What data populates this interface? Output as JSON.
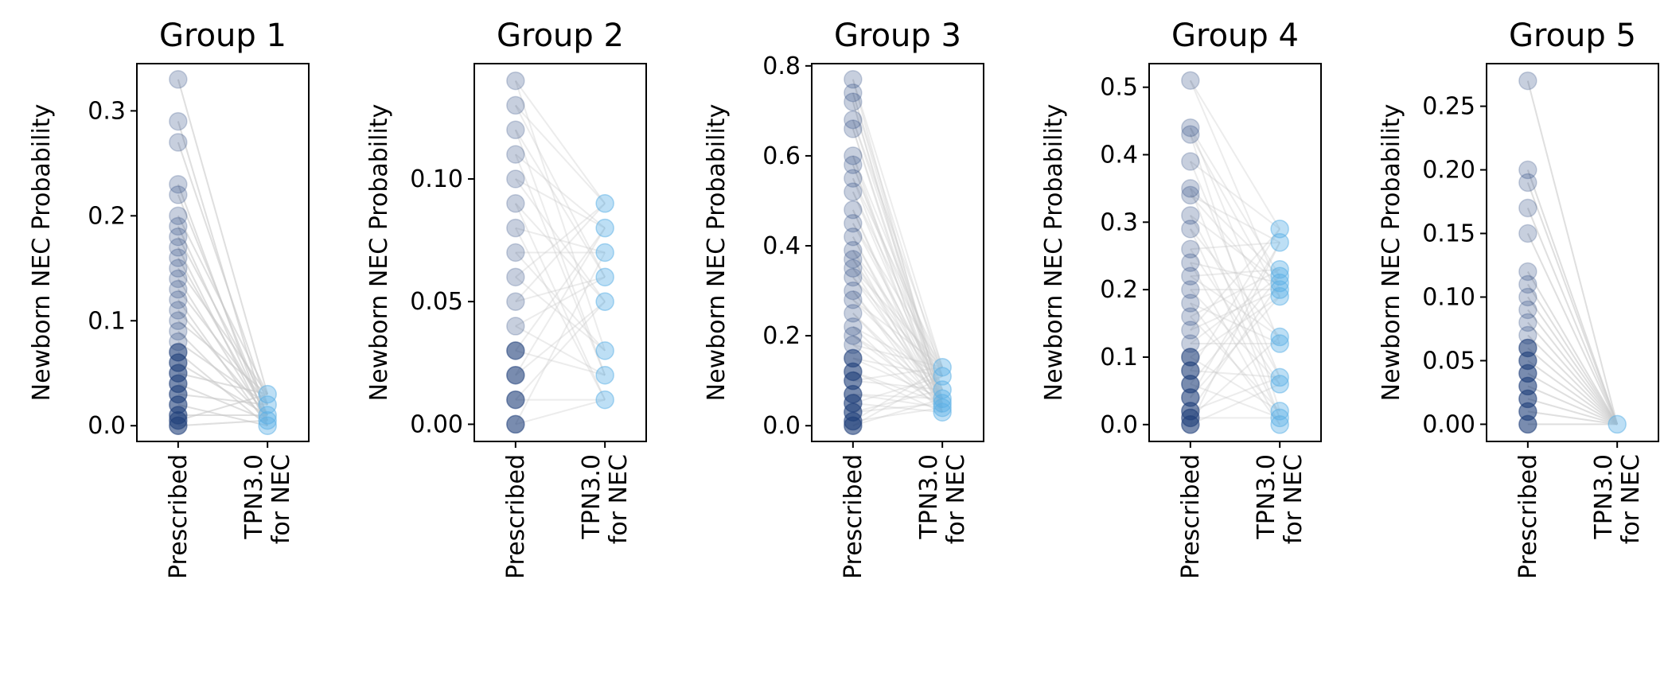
{
  "chart_data": [
    {
      "type": "scatter",
      "title": "Group 1",
      "ylabel": "Newborn NEC Probability",
      "categories": [
        "Prescribed",
        "TPN3.0\nfor NEC"
      ],
      "ylim": [
        -0.015,
        0.345
      ],
      "yticks": [
        0.0,
        0.1,
        0.2,
        0.3
      ],
      "ytick_labels": [
        "0.0",
        "0.1",
        "0.2",
        "0.3"
      ],
      "series": [
        {
          "values": [
            0.33,
            0.29,
            0.27,
            0.23,
            0.22,
            0.2,
            0.19,
            0.18,
            0.17,
            0.16,
            0.15,
            0.14,
            0.13,
            0.12,
            0.11,
            0.1,
            0.09,
            0.08,
            0.07,
            0.06,
            0.05,
            0.04,
            0.03,
            0.02,
            0.01,
            0.005,
            0.0
          ]
        },
        {
          "values": [
            0.03,
            0.02,
            0.01,
            0.005,
            0.0
          ]
        }
      ]
    },
    {
      "type": "scatter",
      "title": "Group 2",
      "ylabel": "Newborn NEC Probability",
      "categories": [
        "Prescribed",
        "TPN3.0\nfor NEC"
      ],
      "ylim": [
        -0.007,
        0.147
      ],
      "yticks": [
        0.0,
        0.05,
        0.1
      ],
      "ytick_labels": [
        "0.00",
        "0.05",
        "0.10"
      ],
      "series": [
        {
          "values": [
            0.14,
            0.13,
            0.12,
            0.11,
            0.1,
            0.09,
            0.08,
            0.07,
            0.06,
            0.05,
            0.04,
            0.03,
            0.02,
            0.01,
            0.0
          ]
        },
        {
          "values": [
            0.09,
            0.08,
            0.07,
            0.06,
            0.05,
            0.03,
            0.02,
            0.01
          ]
        }
      ]
    },
    {
      "type": "scatter",
      "title": "Group 3",
      "ylabel": "Newborn NEC Probability",
      "categories": [
        "Prescribed",
        "TPN3.0\nfor NEC"
      ],
      "ylim": [
        -0.035,
        0.805
      ],
      "yticks": [
        0.0,
        0.2,
        0.4,
        0.6,
        0.8
      ],
      "ytick_labels": [
        "0.0",
        "0.2",
        "0.4",
        "0.6",
        "0.8"
      ],
      "series": [
        {
          "values": [
            0.77,
            0.74,
            0.72,
            0.68,
            0.66,
            0.6,
            0.58,
            0.55,
            0.52,
            0.48,
            0.45,
            0.42,
            0.39,
            0.37,
            0.35,
            0.33,
            0.3,
            0.28,
            0.25,
            0.22,
            0.2,
            0.18,
            0.15,
            0.12,
            0.1,
            0.07,
            0.05,
            0.03,
            0.01,
            0.0
          ]
        },
        {
          "values": [
            0.13,
            0.11,
            0.08,
            0.06,
            0.05,
            0.04,
            0.03
          ]
        }
      ]
    },
    {
      "type": "scatter",
      "title": "Group 4",
      "ylabel": "Newborn NEC Probability",
      "categories": [
        "Prescribed",
        "TPN3.0\nfor NEC"
      ],
      "ylim": [
        -0.025,
        0.535
      ],
      "yticks": [
        0.0,
        0.1,
        0.2,
        0.3,
        0.4,
        0.5
      ],
      "ytick_labels": [
        "0.0",
        "0.1",
        "0.2",
        "0.3",
        "0.4",
        "0.5"
      ],
      "series": [
        {
          "values": [
            0.51,
            0.44,
            0.43,
            0.39,
            0.35,
            0.34,
            0.31,
            0.29,
            0.26,
            0.24,
            0.22,
            0.2,
            0.18,
            0.16,
            0.14,
            0.12,
            0.1,
            0.08,
            0.06,
            0.04,
            0.02,
            0.01,
            0.0
          ]
        },
        {
          "values": [
            0.29,
            0.27,
            0.23,
            0.22,
            0.21,
            0.2,
            0.19,
            0.13,
            0.12,
            0.07,
            0.06,
            0.02,
            0.01,
            0.0
          ]
        }
      ]
    },
    {
      "type": "scatter",
      "title": "Group 5",
      "ylabel": "Newborn NEC Probability",
      "categories": [
        "Prescribed",
        "TPN3.0\nfor NEC"
      ],
      "ylim": [
        -0.0135,
        0.2835
      ],
      "yticks": [
        0.0,
        0.05,
        0.1,
        0.15,
        0.2,
        0.25
      ],
      "ytick_labels": [
        "0.00",
        "0.05",
        "0.10",
        "0.15",
        "0.20",
        "0.25"
      ],
      "series": [
        {
          "values": [
            0.27,
            0.2,
            0.19,
            0.17,
            0.15,
            0.12,
            0.11,
            0.1,
            0.09,
            0.08,
            0.07,
            0.06,
            0.05,
            0.04,
            0.03,
            0.02,
            0.01,
            0.0
          ]
        },
        {
          "values": [
            0.0
          ]
        }
      ]
    }
  ],
  "colors": {
    "prescribed": "#1f3f7a",
    "tpn": "#5ab0e6",
    "line": "#c8c8c8"
  }
}
